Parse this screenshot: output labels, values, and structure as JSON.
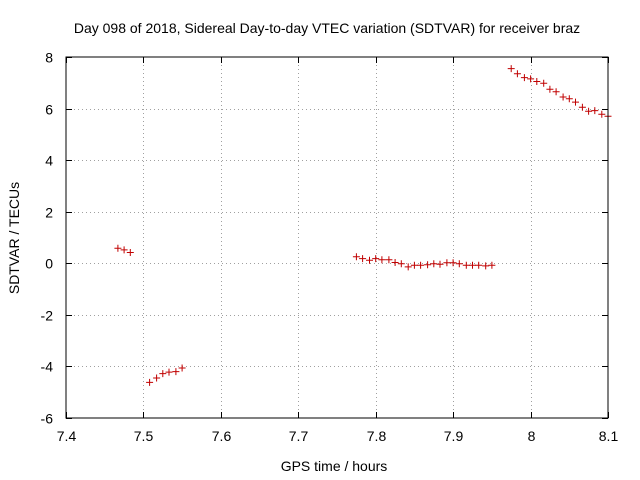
{
  "chart_data": {
    "type": "scatter",
    "title": "Day 098 of 2018, Sidereal Day-to-day VTEC variation (SDTVAR) for receiver braz",
    "xlabel": "GPS time / hours",
    "ylabel": "SDTVAR / TECUs",
    "xlim": [
      7.4,
      8.1
    ],
    "ylim": [
      -6,
      8
    ],
    "xticks": [
      7.4,
      7.5,
      7.6,
      7.7,
      7.8,
      7.9,
      8.0,
      8.1
    ],
    "xtick_labels": [
      "7.4",
      "7.5",
      "7.6",
      "7.7",
      "7.8",
      "7.9",
      "8",
      "8.1"
    ],
    "yticks": [
      -6,
      -4,
      -2,
      0,
      2,
      4,
      6,
      8
    ],
    "ytick_labels": [
      "-6",
      "-4",
      "-2",
      "0",
      "2",
      "4",
      "6",
      "8"
    ],
    "grid": true,
    "marker": "+",
    "marker_color": "#c00000",
    "series": [
      {
        "name": "SDTVAR",
        "points": [
          [
            7.467,
            0.58
          ],
          [
            7.475,
            0.52
          ],
          [
            7.483,
            0.42
          ],
          [
            7.508,
            -4.62
          ],
          [
            7.517,
            -4.45
          ],
          [
            7.525,
            -4.28
          ],
          [
            7.533,
            -4.22
          ],
          [
            7.542,
            -4.2
          ],
          [
            7.55,
            -4.06
          ],
          [
            7.775,
            0.25
          ],
          [
            7.783,
            0.18
          ],
          [
            7.792,
            0.12
          ],
          [
            7.8,
            0.18
          ],
          [
            7.808,
            0.14
          ],
          [
            7.817,
            0.14
          ],
          [
            7.825,
            0.03
          ],
          [
            7.833,
            -0.02
          ],
          [
            7.842,
            -0.14
          ],
          [
            7.85,
            -0.08
          ],
          [
            7.858,
            -0.08
          ],
          [
            7.867,
            -0.06
          ],
          [
            7.875,
            -0.02
          ],
          [
            7.883,
            -0.04
          ],
          [
            7.892,
            0.02
          ],
          [
            7.9,
            0.02
          ],
          [
            7.908,
            -0.02
          ],
          [
            7.917,
            -0.08
          ],
          [
            7.925,
            -0.08
          ],
          [
            7.933,
            -0.08
          ],
          [
            7.942,
            -0.1
          ],
          [
            7.95,
            -0.08
          ],
          [
            7.975,
            7.55
          ],
          [
            7.983,
            7.35
          ],
          [
            7.992,
            7.2
          ],
          [
            8.0,
            7.15
          ],
          [
            8.008,
            7.05
          ],
          [
            8.017,
            6.98
          ],
          [
            8.025,
            6.75
          ],
          [
            8.033,
            6.65
          ],
          [
            8.042,
            6.45
          ],
          [
            8.05,
            6.38
          ],
          [
            8.058,
            6.25
          ],
          [
            8.067,
            6.05
          ],
          [
            8.075,
            5.9
          ],
          [
            8.083,
            5.92
          ],
          [
            8.092,
            5.78
          ],
          [
            8.1,
            5.7
          ]
        ]
      }
    ]
  }
}
